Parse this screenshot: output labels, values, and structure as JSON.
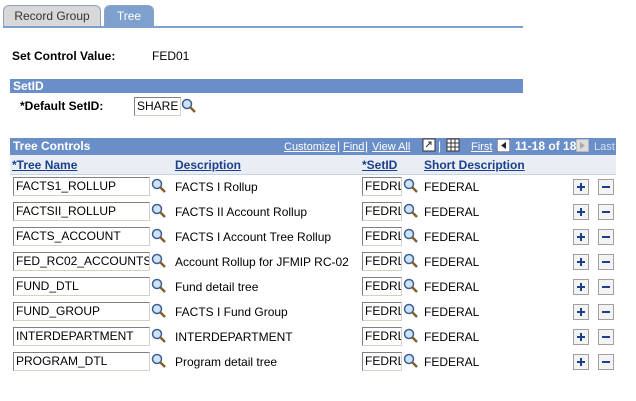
{
  "tabs": [
    "Record Group",
    "Tree"
  ],
  "set_control": {
    "label": "Set Control Value:",
    "value": "FED01"
  },
  "setid_section": {
    "title": "SetID",
    "default_label": "*Default SetID:",
    "default_value": "SHARE"
  },
  "grid": {
    "title": "Tree Controls",
    "links": [
      "Customize",
      "Find",
      "View All"
    ],
    "first": "First",
    "range": "11-18 of 18",
    "last": "Last",
    "columns": [
      "*Tree Name",
      "Description",
      "*SetID",
      "Short Description"
    ],
    "rows": [
      [
        "FACTS1_ROLLUP",
        "FACTS I Rollup",
        "FEDRL",
        "FEDERAL"
      ],
      [
        "FACTSII_ROLLUP",
        "FACTS II Account Rollup",
        "FEDRL",
        "FEDERAL"
      ],
      [
        "FACTS_ACCOUNT",
        "FACTS I Account Tree Rollup",
        "FEDRL",
        "FEDERAL"
      ],
      [
        "FED_RC02_ACCOUNTS",
        "Account Rollup for JFMIP RC-02",
        "FEDRL",
        "FEDERAL"
      ],
      [
        "FUND_DTL",
        "Fund detail tree",
        "FEDRL",
        "FEDERAL"
      ],
      [
        "FUND_GROUP",
        "FACTS I Fund Group",
        "FEDRL",
        "FEDERAL"
      ],
      [
        "INTERDEPARTMENT",
        "INTERDEPARTMENT",
        "FEDRL",
        "FEDERAL"
      ],
      [
        "PROGRAM_DTL",
        "Program detail tree",
        "FEDRL",
        "FEDERAL"
      ]
    ]
  }
}
